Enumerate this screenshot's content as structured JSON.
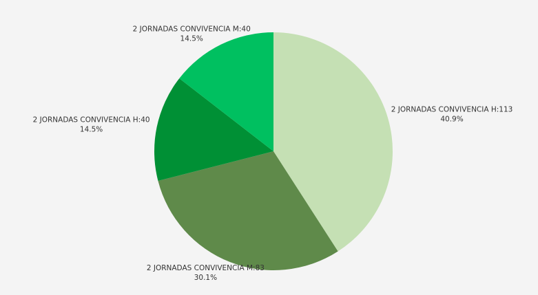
{
  "chart_data": {
    "type": "pie",
    "categories": [
      "2 JORNADAS CONVIVENCIA H:113",
      "2 JORNADAS CONVIVENCIA M:83",
      "2 JORNADAS CONVIVENCIA H:40",
      "2 JORNADAS CONVIVENCIA M:40"
    ],
    "values": [
      40.9,
      30.1,
      14.5,
      14.5
    ],
    "value_labels": [
      "40.9%",
      "30.1%",
      "14.5%",
      "14.5%"
    ],
    "colors": [
      "#c5e0b4",
      "#5f8a4a",
      "#009035",
      "#00c060"
    ]
  }
}
